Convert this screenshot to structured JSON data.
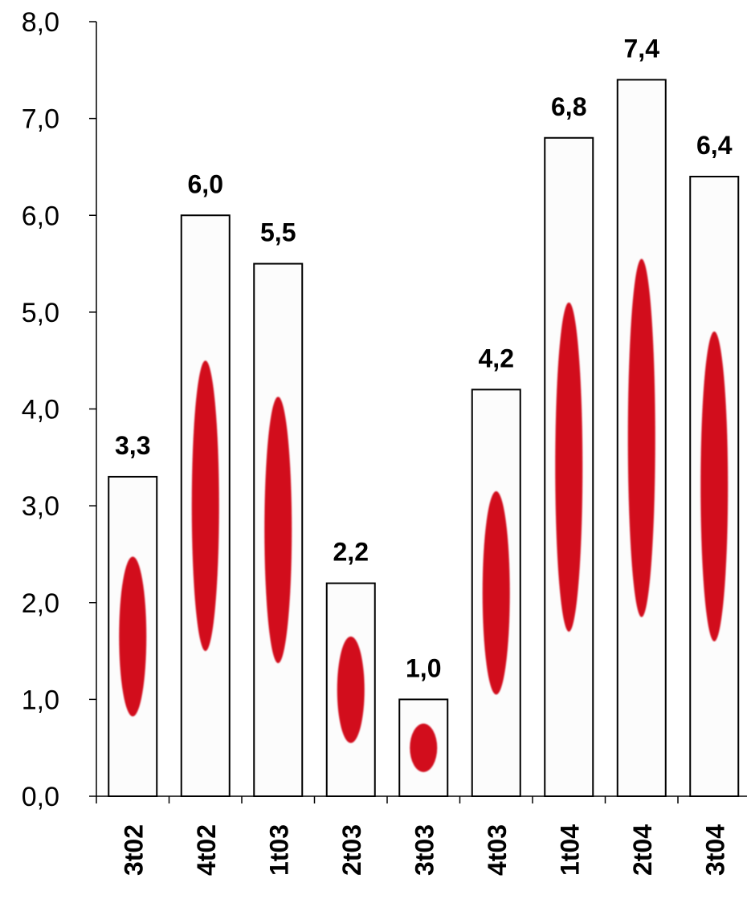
{
  "chart_data": {
    "type": "bar",
    "categories": [
      "3t02",
      "4t02",
      "1t03",
      "2t03",
      "3t03",
      "4t03",
      "1t04",
      "2t04",
      "3t04"
    ],
    "values": [
      3.3,
      6.0,
      5.5,
      2.2,
      1.0,
      4.2,
      6.8,
      7.4,
      6.4
    ],
    "data_labels": [
      "3,3",
      "6,0",
      "5,5",
      "2,2",
      "1,0",
      "4,2",
      "6,8",
      "7,4",
      "6,4"
    ],
    "y_tick_labels": [
      "0,0",
      "1,0",
      "2,0",
      "3,0",
      "4,0",
      "5,0",
      "6,0",
      "7,0",
      "8,0"
    ],
    "ylim": [
      0,
      8
    ],
    "title": "",
    "xlabel": "",
    "ylabel": "",
    "grid": false,
    "legend": "none",
    "colors": {
      "bar_fill": "#fcfcfc",
      "bar_stroke": "#000000",
      "ellipse": "#d20a1e",
      "axis": "#000000"
    }
  }
}
